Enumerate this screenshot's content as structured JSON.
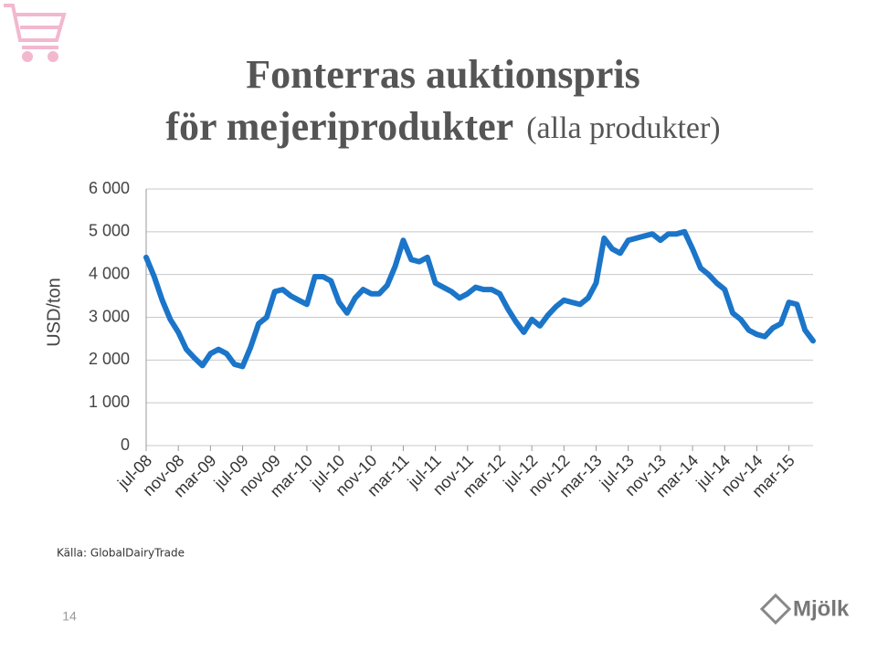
{
  "chart_data": {
    "type": "line",
    "title": "Fonterras auktionspris",
    "title_line2": "för mejeriprodukter",
    "title_note": "(alla produkter)",
    "ylabel": "USD/ton",
    "categories": [
      "jul-08",
      null,
      null,
      null,
      "nov-08",
      null,
      null,
      null,
      "mar-09",
      null,
      null,
      null,
      "jul-09",
      null,
      null,
      null,
      "nov-09",
      null,
      null,
      null,
      "mar-10",
      null,
      null,
      null,
      "jul-10",
      null,
      null,
      null,
      "nov-10",
      null,
      null,
      null,
      "mar-11",
      null,
      null,
      null,
      "jul-11",
      null,
      null,
      null,
      "nov-11",
      null,
      null,
      null,
      "mar-12",
      null,
      null,
      null,
      "jul-12",
      null,
      null,
      null,
      "nov-12",
      null,
      null,
      null,
      "mar-13",
      null,
      null,
      null,
      "jul-13",
      null,
      null,
      null,
      "nov-13",
      null,
      null,
      null,
      "mar-14",
      null,
      null,
      null,
      "jul-14",
      null,
      null,
      null,
      "nov-14",
      null,
      null,
      null,
      "mar-15",
      null,
      null,
      null
    ],
    "series": [
      {
        "name": "Auktionspris",
        "color": "#1b75c9",
        "values": [
          4400,
          3950,
          3400,
          2950,
          2650,
          2250,
          2050,
          1870,
          2150,
          2250,
          2150,
          1900,
          1850,
          2300,
          2850,
          3000,
          3600,
          3650,
          3500,
          3400,
          3300,
          3950,
          3950,
          3850,
          3350,
          3100,
          3450,
          3650,
          3550,
          3550,
          3750,
          4200,
          4800,
          4350,
          4300,
          4400,
          3800,
          3700,
          3600,
          3450,
          3550,
          3700,
          3650,
          3650,
          3550,
          3200,
          2900,
          2650,
          2950,
          2800,
          3050,
          3250,
          3400,
          3350,
          3300,
          3450,
          3800,
          4850,
          4600,
          4500,
          4800,
          4850,
          4900,
          4950,
          4800,
          4950,
          4950,
          5000,
          4600,
          4150,
          4000,
          3800,
          3650,
          3100,
          2950,
          2700,
          2600,
          2550,
          2750,
          2850,
          3350,
          3300,
          2700,
          2450
        ]
      }
    ],
    "ylim": [
      0,
      6000
    ],
    "yticks": [
      0,
      {
        "value": 1000,
        "label": "1 000"
      },
      {
        "value": 2000,
        "label": "2 000"
      },
      {
        "value": 3000,
        "label": "3 000"
      },
      {
        "value": 4000,
        "label": "4 000"
      },
      {
        "value": 5000,
        "label": "5 000"
      },
      {
        "value": 6000,
        "label": "6 000"
      }
    ],
    "grid": true
  },
  "source": "Källa: GlobalDairyTrade",
  "page_number": "14",
  "logo": "Mjölk"
}
